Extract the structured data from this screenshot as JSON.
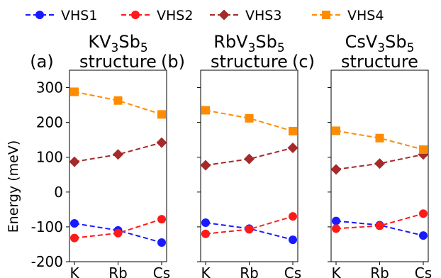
{
  "chart_data": {
    "type": "line",
    "ylabel": "Energy (meV)",
    "ylim": [
      -200,
      350
    ],
    "yticks": [
      -200,
      -100,
      0,
      100,
      200,
      300
    ],
    "categories": [
      "K",
      "Rb",
      "Cs"
    ],
    "legend_position": "top",
    "series_styles": [
      {
        "name": "VHS1",
        "color": "#1a1aff",
        "marker": "circle"
      },
      {
        "name": "VHS2",
        "color": "#ff1a1a",
        "marker": "circle"
      },
      {
        "name": "VHS3",
        "color": "#a52a2a",
        "marker": "diamond"
      },
      {
        "name": "VHS4",
        "color": "#ff8c00",
        "marker": "square"
      }
    ],
    "panels": [
      {
        "label": "(a)",
        "title_base": "KV",
        "title_sub1": "3",
        "title_mid": "Sb",
        "title_sub2": "5",
        "title_line2": "structure",
        "series": [
          {
            "name": "VHS1",
            "values": [
              -90,
              -110,
              -145
            ]
          },
          {
            "name": "VHS2",
            "values": [
              -132,
              -118,
              -78
            ]
          },
          {
            "name": "VHS3",
            "values": [
              87,
              108,
              142
            ]
          },
          {
            "name": "VHS4",
            "values": [
              288,
              263,
              223
            ]
          }
        ]
      },
      {
        "label": "(b)",
        "title_base": "RbV",
        "title_sub1": "3",
        "title_mid": "Sb",
        "title_sub2": "5",
        "title_line2": "structure",
        "series": [
          {
            "name": "VHS1",
            "values": [
              -88,
              -105,
              -137
            ]
          },
          {
            "name": "VHS2",
            "values": [
              -120,
              -107,
              -70
            ]
          },
          {
            "name": "VHS3",
            "values": [
              77,
              95,
              127
            ]
          },
          {
            "name": "VHS4",
            "values": [
              235,
              212,
              175
            ]
          }
        ]
      },
      {
        "label": "(c)",
        "title_base": "CsV",
        "title_sub1": "3",
        "title_mid": "Sb",
        "title_sub2": "5",
        "title_line2": "structure",
        "series": [
          {
            "name": "VHS1",
            "values": [
              -83,
              -95,
              -125
            ]
          },
          {
            "name": "VHS2",
            "values": [
              -105,
              -97,
              -62
            ]
          },
          {
            "name": "VHS3",
            "values": [
              65,
              82,
              108
            ]
          },
          {
            "name": "VHS4",
            "values": [
              176,
              155,
              122
            ]
          }
        ]
      }
    ]
  }
}
